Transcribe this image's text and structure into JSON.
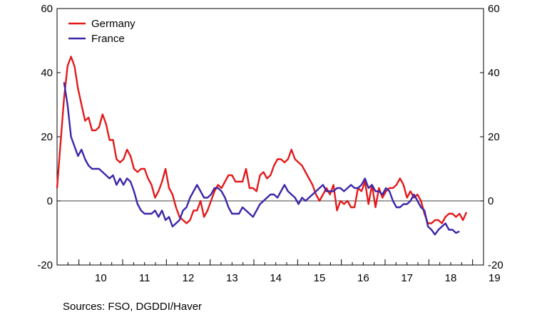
{
  "chart_data": {
    "type": "line",
    "title": "",
    "xlabel": "",
    "ylabel": "",
    "ylim": [
      -20,
      60
    ],
    "yticks": [
      -20,
      0,
      20,
      40,
      60
    ],
    "y_tick_labels": [
      "-20",
      "0",
      "20",
      "40",
      "60"
    ],
    "right_axis_duplicate": true,
    "x_range": [
      2009.5,
      2019.25
    ],
    "x_tick_labels": [
      "10",
      "11",
      "12",
      "13",
      "14",
      "15",
      "16",
      "17",
      "18",
      "19"
    ],
    "grid": false,
    "zero_line": true,
    "legend_position": "top-left",
    "series": [
      {
        "name": "Germany",
        "color": "#e31a1c",
        "points": [
          [
            2009.5,
            4
          ],
          [
            2009.58,
            18
          ],
          [
            2009.66,
            32
          ],
          [
            2009.74,
            42
          ],
          [
            2009.82,
            45
          ],
          [
            2009.9,
            42
          ],
          [
            2009.98,
            35
          ],
          [
            2010.06,
            30
          ],
          [
            2010.14,
            25
          ],
          [
            2010.22,
            26
          ],
          [
            2010.3,
            22
          ],
          [
            2010.38,
            22
          ],
          [
            2010.46,
            23
          ],
          [
            2010.54,
            27
          ],
          [
            2010.62,
            24
          ],
          [
            2010.7,
            19
          ],
          [
            2010.78,
            19
          ],
          [
            2010.86,
            13
          ],
          [
            2010.94,
            12
          ],
          [
            2011.02,
            13
          ],
          [
            2011.1,
            16
          ],
          [
            2011.18,
            14
          ],
          [
            2011.26,
            10
          ],
          [
            2011.34,
            9
          ],
          [
            2011.42,
            10
          ],
          [
            2011.5,
            10
          ],
          [
            2011.58,
            7
          ],
          [
            2011.66,
            5
          ],
          [
            2011.74,
            1
          ],
          [
            2011.82,
            3
          ],
          [
            2011.9,
            6
          ],
          [
            2011.98,
            10
          ],
          [
            2012.06,
            4
          ],
          [
            2012.14,
            2
          ],
          [
            2012.22,
            -2
          ],
          [
            2012.3,
            -5
          ],
          [
            2012.38,
            -6
          ],
          [
            2012.46,
            -7
          ],
          [
            2012.54,
            -6
          ],
          [
            2012.62,
            -3
          ],
          [
            2012.7,
            -3
          ],
          [
            2012.78,
            0
          ],
          [
            2012.86,
            -5
          ],
          [
            2012.94,
            -3
          ],
          [
            2013.02,
            0
          ],
          [
            2013.1,
            3
          ],
          [
            2013.18,
            5
          ],
          [
            2013.26,
            4
          ],
          [
            2013.34,
            6
          ],
          [
            2013.42,
            8
          ],
          [
            2013.5,
            8
          ],
          [
            2013.58,
            6
          ],
          [
            2013.66,
            6
          ],
          [
            2013.74,
            6
          ],
          [
            2013.82,
            10
          ],
          [
            2013.9,
            4
          ],
          [
            2013.98,
            4
          ],
          [
            2014.06,
            3
          ],
          [
            2014.14,
            8
          ],
          [
            2014.22,
            9
          ],
          [
            2014.3,
            7
          ],
          [
            2014.38,
            8
          ],
          [
            2014.46,
            11
          ],
          [
            2014.54,
            13
          ],
          [
            2014.62,
            13
          ],
          [
            2014.7,
            12
          ],
          [
            2014.78,
            13
          ],
          [
            2014.86,
            16
          ],
          [
            2014.94,
            13
          ],
          [
            2015.02,
            12
          ],
          [
            2015.1,
            11
          ],
          [
            2015.18,
            9
          ],
          [
            2015.26,
            7
          ],
          [
            2015.34,
            5
          ],
          [
            2015.42,
            2
          ],
          [
            2015.5,
            0
          ],
          [
            2015.58,
            2
          ],
          [
            2015.66,
            4
          ],
          [
            2015.74,
            2
          ],
          [
            2015.82,
            5
          ],
          [
            2015.9,
            -3
          ],
          [
            2015.98,
            0
          ],
          [
            2016.06,
            -1
          ],
          [
            2016.14,
            0
          ],
          [
            2016.22,
            -2
          ],
          [
            2016.3,
            -2
          ],
          [
            2016.38,
            4
          ],
          [
            2016.46,
            3
          ],
          [
            2016.54,
            6
          ],
          [
            2016.62,
            -1
          ],
          [
            2016.7,
            5
          ],
          [
            2016.78,
            -2
          ],
          [
            2016.86,
            4
          ],
          [
            2016.94,
            1
          ],
          [
            2017.02,
            3
          ],
          [
            2017.1,
            4
          ],
          [
            2017.18,
            4
          ],
          [
            2017.26,
            5
          ],
          [
            2017.34,
            7
          ],
          [
            2017.42,
            5
          ],
          [
            2017.5,
            1
          ],
          [
            2017.58,
            3
          ],
          [
            2017.66,
            1
          ],
          [
            2017.74,
            2
          ],
          [
            2017.82,
            0
          ],
          [
            2017.9,
            -4
          ],
          [
            2017.98,
            -7
          ],
          [
            2018.06,
            -7
          ],
          [
            2018.14,
            -6
          ],
          [
            2018.22,
            -6
          ],
          [
            2018.3,
            -7
          ],
          [
            2018.38,
            -5
          ],
          [
            2018.46,
            -4
          ],
          [
            2018.54,
            -4
          ],
          [
            2018.62,
            -5
          ],
          [
            2018.7,
            -4
          ],
          [
            2018.78,
            -6
          ],
          [
            2018.86,
            -3.5
          ]
        ]
      },
      {
        "name": "France",
        "color": "#3b27a8",
        "points": [
          [
            2009.66,
            37
          ],
          [
            2009.74,
            30
          ],
          [
            2009.82,
            20
          ],
          [
            2009.9,
            17
          ],
          [
            2009.98,
            14
          ],
          [
            2010.06,
            16
          ],
          [
            2010.14,
            13
          ],
          [
            2010.22,
            11
          ],
          [
            2010.3,
            10
          ],
          [
            2010.38,
            10
          ],
          [
            2010.46,
            10
          ],
          [
            2010.54,
            9
          ],
          [
            2010.62,
            8
          ],
          [
            2010.7,
            7
          ],
          [
            2010.78,
            8
          ],
          [
            2010.86,
            5
          ],
          [
            2010.94,
            7
          ],
          [
            2011.02,
            5
          ],
          [
            2011.1,
            7
          ],
          [
            2011.18,
            6
          ],
          [
            2011.26,
            3
          ],
          [
            2011.34,
            -1
          ],
          [
            2011.42,
            -3
          ],
          [
            2011.5,
            -4
          ],
          [
            2011.58,
            -4
          ],
          [
            2011.66,
            -4
          ],
          [
            2011.74,
            -3
          ],
          [
            2011.82,
            -5
          ],
          [
            2011.9,
            -3
          ],
          [
            2011.98,
            -6
          ],
          [
            2012.06,
            -5
          ],
          [
            2012.14,
            -8
          ],
          [
            2012.22,
            -7
          ],
          [
            2012.3,
            -6
          ],
          [
            2012.38,
            -3
          ],
          [
            2012.46,
            -2
          ],
          [
            2012.54,
            1
          ],
          [
            2012.62,
            3
          ],
          [
            2012.7,
            5
          ],
          [
            2012.78,
            3
          ],
          [
            2012.86,
            1
          ],
          [
            2012.94,
            1
          ],
          [
            2013.02,
            2
          ],
          [
            2013.1,
            4
          ],
          [
            2013.18,
            4
          ],
          [
            2013.26,
            3
          ],
          [
            2013.34,
            1
          ],
          [
            2013.42,
            -2
          ],
          [
            2013.5,
            -4
          ],
          [
            2013.58,
            -4
          ],
          [
            2013.66,
            -4
          ],
          [
            2013.74,
            -2
          ],
          [
            2013.82,
            -3
          ],
          [
            2013.9,
            -4
          ],
          [
            2013.98,
            -5
          ],
          [
            2014.06,
            -3
          ],
          [
            2014.14,
            -1
          ],
          [
            2014.22,
            0
          ],
          [
            2014.3,
            1
          ],
          [
            2014.38,
            2
          ],
          [
            2014.46,
            2
          ],
          [
            2014.54,
            1
          ],
          [
            2014.62,
            3
          ],
          [
            2014.7,
            5
          ],
          [
            2014.78,
            3
          ],
          [
            2014.86,
            2
          ],
          [
            2014.94,
            1
          ],
          [
            2015.02,
            -1
          ],
          [
            2015.1,
            1
          ],
          [
            2015.18,
            0
          ],
          [
            2015.26,
            1
          ],
          [
            2015.34,
            2
          ],
          [
            2015.42,
            3
          ],
          [
            2015.5,
            4
          ],
          [
            2015.58,
            5
          ],
          [
            2015.66,
            3
          ],
          [
            2015.74,
            3
          ],
          [
            2015.82,
            3
          ],
          [
            2015.9,
            4
          ],
          [
            2015.98,
            4
          ],
          [
            2016.06,
            3
          ],
          [
            2016.14,
            4
          ],
          [
            2016.22,
            5
          ],
          [
            2016.3,
            4
          ],
          [
            2016.38,
            4
          ],
          [
            2016.46,
            5
          ],
          [
            2016.54,
            7
          ],
          [
            2016.62,
            4
          ],
          [
            2016.7,
            5
          ],
          [
            2016.78,
            3
          ],
          [
            2016.86,
            3
          ],
          [
            2016.94,
            2
          ],
          [
            2017.02,
            4
          ],
          [
            2017.1,
            3
          ],
          [
            2017.18,
            0
          ],
          [
            2017.26,
            -2
          ],
          [
            2017.34,
            -2
          ],
          [
            2017.42,
            -1
          ],
          [
            2017.5,
            -1
          ],
          [
            2017.58,
            0
          ],
          [
            2017.66,
            2
          ],
          [
            2017.74,
            0
          ],
          [
            2017.82,
            -2
          ],
          [
            2017.9,
            -3
          ],
          [
            2017.98,
            -8
          ],
          [
            2018.06,
            -9
          ],
          [
            2018.14,
            -10.5
          ],
          [
            2018.22,
            -9
          ],
          [
            2018.3,
            -8
          ],
          [
            2018.38,
            -7
          ],
          [
            2018.46,
            -9
          ],
          [
            2018.54,
            -9
          ],
          [
            2018.62,
            -10
          ],
          [
            2018.7,
            -9.5
          ]
        ]
      }
    ]
  },
  "source_text": "Sources:  FSO, DGDDI/Haver"
}
